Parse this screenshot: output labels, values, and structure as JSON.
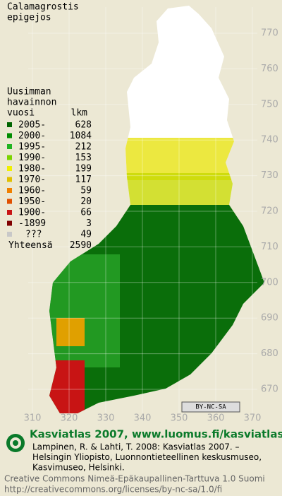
{
  "title_lines": [
    "Calamagrostis",
    "epigejos"
  ],
  "legend": {
    "header_lines": [
      "Uusimman",
      "havainnon",
      "vuosi"
    ],
    "count_header": "lkm",
    "items": [
      {
        "label": "2005-",
        "count": 628,
        "color": "#006400"
      },
      {
        "label": "2000-",
        "count": 1084,
        "color": "#008c00"
      },
      {
        "label": "1995-",
        "count": 212,
        "color": "#22b422"
      },
      {
        "label": "1990-",
        "count": 153,
        "color": "#7cd400"
      },
      {
        "label": "1980-",
        "count": 199,
        "color": "#f0f000"
      },
      {
        "label": "1970-",
        "count": 117,
        "color": "#e0c000"
      },
      {
        "label": "1960-",
        "count": 59,
        "color": "#f08000"
      },
      {
        "label": "1950-",
        "count": 20,
        "color": "#e05000"
      },
      {
        "label": "1900-",
        "count": 66,
        "color": "#c81414"
      },
      {
        "label": "-1899",
        "count": 3,
        "color": "#800000"
      },
      {
        "label": "???",
        "count": 49,
        "color": "#c8c8c8"
      }
    ],
    "total_label": "Yhteensä",
    "total": 2590
  },
  "xticks": [
    310,
    320,
    330,
    340,
    350,
    360,
    370
  ],
  "yticks": [
    670,
    680,
    690,
    700,
    710,
    720,
    730,
    740,
    750,
    760,
    770
  ],
  "license_badge": "BY-NC-SA",
  "footer": {
    "site": "Kasviatlas 2007, www.luomus.fi/kasviatlas",
    "citation_lines": [
      "Lampinen, R. & Lahti, T. 2008: Kasviatlas 2007. –",
      "Helsingin Yliopisto, Luonnontieteellinen keskusmuseo,",
      "Kasvimuseo, Helsinki."
    ],
    "license_lines": [
      "Creative Commons Nimeä-Epäkaupallinen-Tarttuva 1.0 Suomi",
      "http://creativecommons.org/licenses/by-nc-sa/1.0/fi"
    ]
  }
}
